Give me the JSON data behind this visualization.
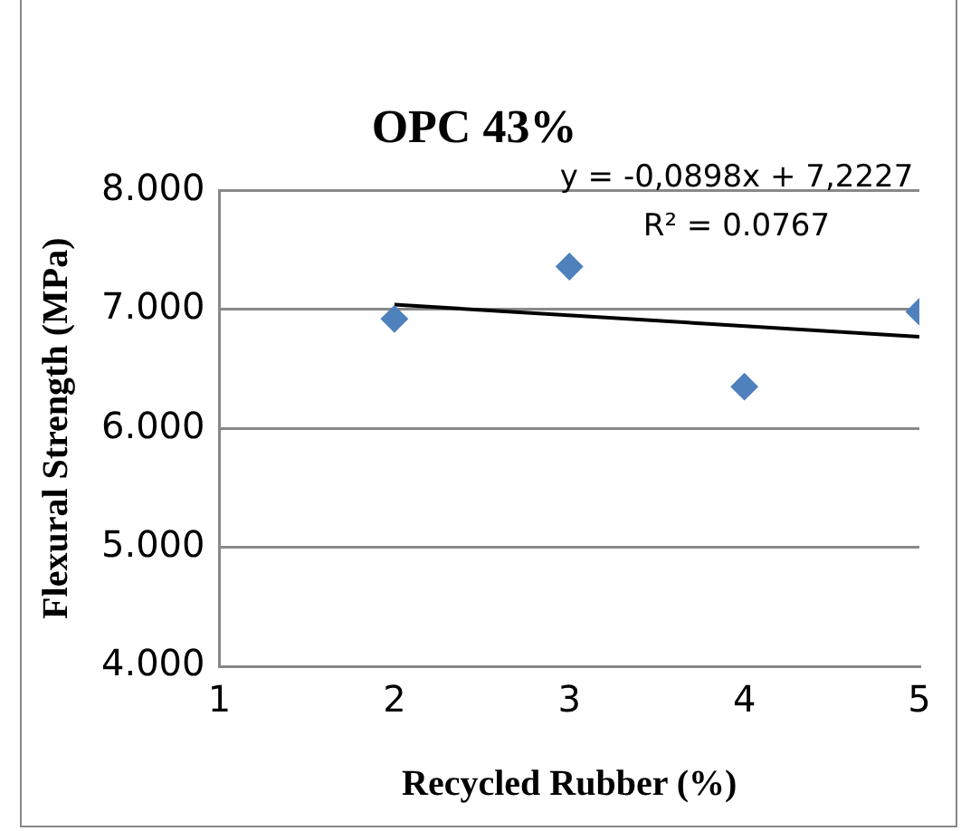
{
  "chart_data": {
    "type": "scatter",
    "title": "OPC 43%",
    "xlabel": "Recycled Rubber (%)",
    "ylabel": "Flexural Strength (MPa)",
    "annotations": [
      "y = -0,0898x + 7,2227",
      "R² = 0.0767"
    ],
    "series": [
      {
        "type": "scatter",
        "color": "#4f81bd",
        "marker": "diamond",
        "x": [
          2,
          3,
          4,
          5
        ],
        "values": [
          6.92,
          7.36,
          6.35,
          6.98
        ]
      },
      {
        "type": "line",
        "color": "#000000",
        "marker": "none",
        "x": [
          2,
          5
        ],
        "values": [
          7.04,
          6.77
        ]
      }
    ],
    "xlim": [
      1,
      5
    ],
    "xticks": [
      1,
      2,
      3,
      4,
      5
    ],
    "ylim": [
      4,
      8
    ],
    "yticks": [
      {
        "value": 4,
        "label": "4.000"
      },
      {
        "value": 5,
        "label": "5.000"
      },
      {
        "value": 6,
        "label": "6.000"
      },
      {
        "value": 7,
        "label": "7.000"
      },
      {
        "value": 8,
        "label": "8.000"
      }
    ],
    "grid": "y",
    "legend": false
  }
}
